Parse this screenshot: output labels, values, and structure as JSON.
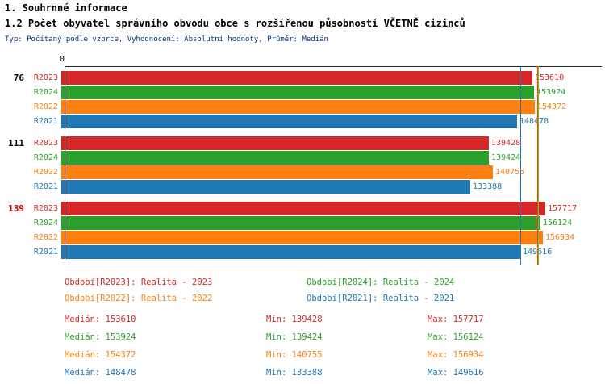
{
  "header": {
    "section_title": "1. Souhrnné informace",
    "chart_title": "1.2 Počet obyvatel správního obvodu obce s rozšířenou působností VČETNĚ cizinců",
    "subtitle": "Typ: Počítaný podle vzorce, Vyhodnocení: Absolutní hodnoty, Průměr: Medián"
  },
  "chart_data": {
    "type": "bar",
    "orientation": "horizontal",
    "title": "1.2 Počet obyvatel správního obvodu obce s rozšířenou působností VČETNĚ cizinců",
    "axis_origin_label": "0",
    "xlim": [
      0,
      165000
    ],
    "grid": false,
    "categories": [
      "76",
      "111",
      "139"
    ],
    "category_label_colors": [
      "#000000",
      "#000000",
      "#cc0000"
    ],
    "bar_order": [
      "R2023",
      "R2024",
      "R2022",
      "R2021"
    ],
    "series": [
      {
        "name": "R2023",
        "color": "#d62728",
        "values": [
          153610,
          139428,
          157717
        ],
        "median": 153610,
        "min": 139428,
        "max": 157717
      },
      {
        "name": "R2024",
        "color": "#2ca02c",
        "values": [
          153924,
          139424,
          156124
        ],
        "median": 153924,
        "min": 139424,
        "max": 156124
      },
      {
        "name": "R2022",
        "color": "#ff7f0e",
        "values": [
          154372,
          140755,
          156934
        ],
        "median": 154372,
        "min": 140755,
        "max": 156934
      },
      {
        "name": "R2021",
        "color": "#1f77b4",
        "values": [
          148478,
          133388,
          149616
        ],
        "median": 148478,
        "min": 133388,
        "max": 149616
      }
    ],
    "median_lines": [
      153610,
      153924,
      154372,
      148478
    ]
  },
  "legend": {
    "items": [
      {
        "series": "R2023",
        "label": "Období[R2023]: Realita - 2023"
      },
      {
        "series": "R2024",
        "label": "Období[R2024]: Realita - 2024"
      },
      {
        "series": "R2022",
        "label": "Období[R2022]: Realita - 2022"
      },
      {
        "series": "R2021",
        "label": "Období[R2021]: Realita - 2021"
      }
    ]
  },
  "stats": {
    "rows": [
      {
        "series": "R2023",
        "median": "Medián: 153610",
        "min": "Min: 139428",
        "max": "Max: 157717"
      },
      {
        "series": "R2024",
        "median": "Medián: 153924",
        "min": "Min: 139424",
        "max": "Max: 156124"
      },
      {
        "series": "R2022",
        "median": "Medián: 154372",
        "min": "Min: 140755",
        "max": "Max: 156934"
      },
      {
        "series": "R2021",
        "median": "Medián: 148478",
        "min": "Min: 133388",
        "max": "Max: 149616"
      }
    ]
  }
}
